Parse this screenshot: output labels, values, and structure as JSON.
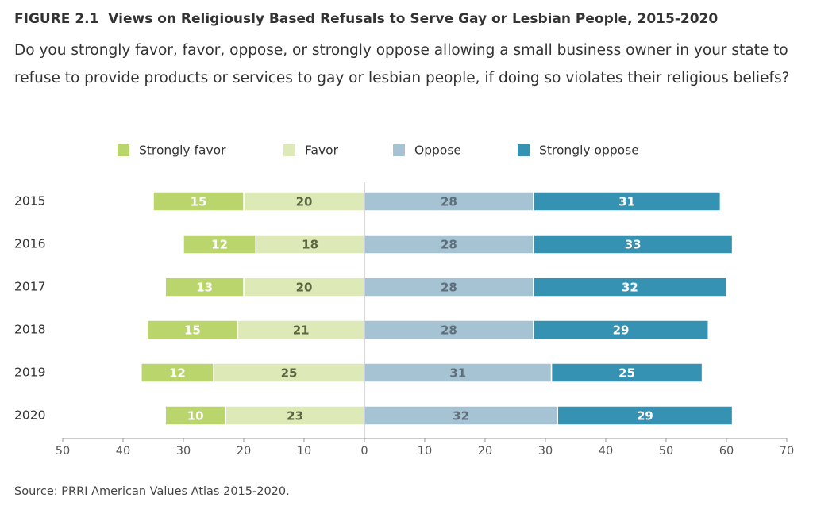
{
  "chart_data": {
    "type": "diverging-bar",
    "title": "FIGURE 2.1  Views on Religiously Based Refusals to Serve Gay or Lesbian People, 2015-2020",
    "subtitle": "Do you strongly favor, favor, oppose, or strongly oppose allowing a small business owner in your state to refuse to provide products or services to gay or lesbian people, if doing so violates their religious beliefs?",
    "source": "Source: PRRI American Values Atlas 2015-2020.",
    "categories": [
      "2015",
      "2016",
      "2017",
      "2018",
      "2019",
      "2020"
    ],
    "series": [
      {
        "name": "Strongly favor",
        "color": "#b9d56b",
        "label_color": "#ffffff",
        "side": "left",
        "values": [
          15,
          12,
          13,
          15,
          12,
          10
        ]
      },
      {
        "name": "Favor",
        "color": "#dde9b6",
        "label_color": "#5b6640",
        "side": "left",
        "values": [
          20,
          18,
          20,
          21,
          25,
          23
        ]
      },
      {
        "name": "Oppose",
        "color": "#a6c3d4",
        "label_color": "#5f6f7a",
        "side": "right",
        "values": [
          28,
          28,
          28,
          28,
          31,
          32
        ]
      },
      {
        "name": "Strongly oppose",
        "color": "#3592b2",
        "label_color": "#ffffff",
        "side": "right",
        "values": [
          31,
          33,
          32,
          29,
          25,
          29
        ]
      }
    ],
    "xlim": [
      -50,
      70
    ],
    "xticks": [
      {
        "value": -50,
        "label": "50"
      },
      {
        "value": -40,
        "label": "40"
      },
      {
        "value": -30,
        "label": "30"
      },
      {
        "value": -20,
        "label": "20"
      },
      {
        "value": -10,
        "label": "10"
      },
      0,
      10,
      20,
      30,
      40,
      50,
      60,
      70
    ]
  }
}
